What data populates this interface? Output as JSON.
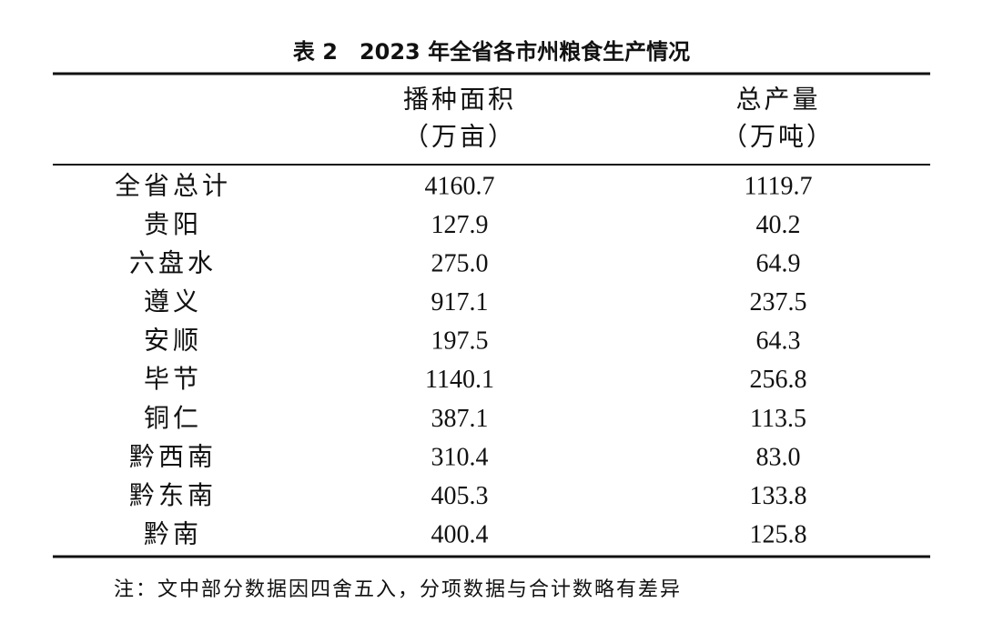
{
  "table": {
    "title": "表 2　2023 年全省各市州粮食生产情况",
    "columns": [
      {
        "name": "播种面积",
        "unit": "（万亩）"
      },
      {
        "name": "总产量",
        "unit": "（万吨）"
      }
    ],
    "rows": [
      [
        "全省总计",
        "4160.7",
        "1119.7"
      ],
      [
        "贵阳",
        "127.9",
        "40.2"
      ],
      [
        "六盘水",
        "275.0",
        "64.9"
      ],
      [
        "遵义",
        "917.1",
        "237.5"
      ],
      [
        "安顺",
        "197.5",
        "64.3"
      ],
      [
        "毕节",
        "1140.1",
        "256.8"
      ],
      [
        "铜仁",
        "387.1",
        "113.5"
      ],
      [
        "黔西南",
        "310.4",
        "83.0"
      ],
      [
        "黔东南",
        "405.3",
        "133.8"
      ],
      [
        "黔南",
        "400.4",
        "125.8"
      ]
    ],
    "note": "注：文中部分数据因四舍五入，分项数据与合计数略有差异"
  }
}
